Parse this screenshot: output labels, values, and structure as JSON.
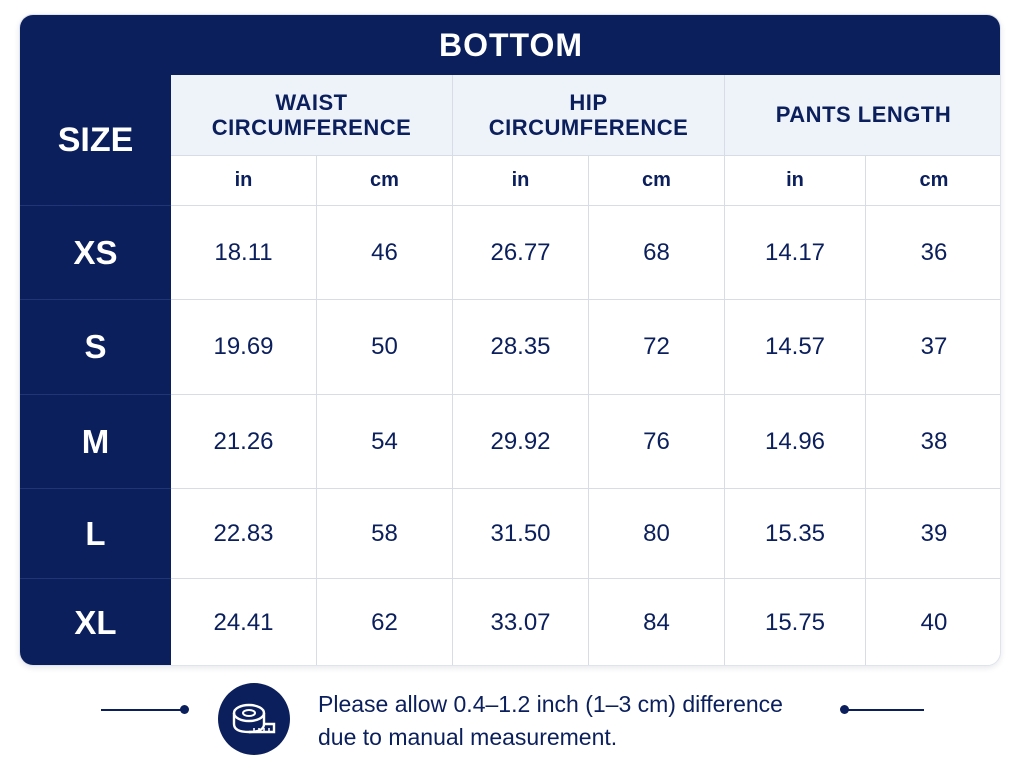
{
  "title": "BOTTOM",
  "size_header": "SIZE",
  "groups": [
    {
      "line1": "WAIST",
      "line2": "CIRCUMFERENCE"
    },
    {
      "line1": "HIP",
      "line2": "CIRCUMFERENCE"
    },
    {
      "line1": "PANTS LENGTH",
      "line2": ""
    }
  ],
  "units": [
    "in",
    "cm",
    "in",
    "cm",
    "in",
    "cm"
  ],
  "rows": [
    {
      "size": "XS",
      "values": [
        "18.11",
        "46",
        "26.77",
        "68",
        "14.17",
        "36"
      ]
    },
    {
      "size": "S",
      "values": [
        "19.69",
        "50",
        "28.35",
        "72",
        "14.57",
        "37"
      ]
    },
    {
      "size": "M",
      "values": [
        "21.26",
        "54",
        "29.92",
        "76",
        "14.96",
        "38"
      ]
    },
    {
      "size": "L",
      "values": [
        "22.83",
        "58",
        "31.50",
        "80",
        "15.35",
        "39"
      ]
    },
    {
      "size": "XL",
      "values": [
        "24.41",
        "62",
        "33.07",
        "84",
        "15.75",
        "40"
      ]
    }
  ],
  "note": {
    "line1": "Please allow 0.4–1.2 inch (1–3 cm) difference",
    "line2": "due to manual measurement.",
    "icon": "measuring-tape-icon"
  },
  "colors": {
    "navy": "#0b1f5c",
    "header_bg": "#eef2f9",
    "grid": "#d7dce6"
  }
}
